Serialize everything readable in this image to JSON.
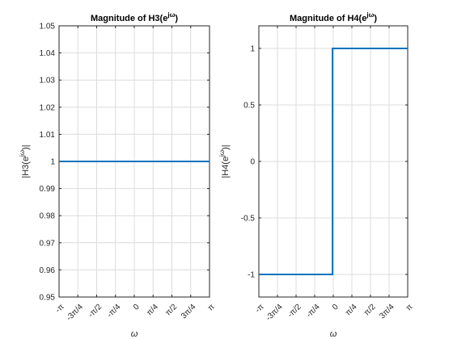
{
  "chart_data": [
    {
      "type": "line",
      "title": "Magnitude of H3(e^{jω})",
      "title_text": "Magnitude of H3(e",
      "title_sup": "jω",
      "title_close": ")",
      "xlabel": "ω",
      "ylabel": "|H3(e^{jω})|",
      "ylabel_text": "|H3(e",
      "ylabel_sup": "jω",
      "ylabel_close": ")|",
      "xlim": [
        -3.14159265,
        3.14159265
      ],
      "ylim": [
        0.95,
        1.05
      ],
      "x_ticks": [
        -3.14159265,
        -2.35619449,
        -1.57079633,
        -0.78539816,
        0,
        0.78539816,
        1.57079633,
        2.35619449,
        3.14159265
      ],
      "x_tick_labels": [
        "-π",
        "-3π/4",
        "-π/2",
        "-π/4",
        "0",
        "π/4",
        "π/2",
        "3π/4",
        "π"
      ],
      "y_ticks": [
        0.95,
        0.96,
        0.97,
        0.98,
        0.99,
        1,
        1.01,
        1.02,
        1.03,
        1.04,
        1.05
      ],
      "y_tick_labels": [
        "0.95",
        "0.96",
        "0.97",
        "0.98",
        "0.99",
        "1",
        "1.01",
        "1.02",
        "1.03",
        "1.04",
        "1.05"
      ],
      "grid": true,
      "color": "#0072BD",
      "series": [
        {
          "x": [
            -3.14159265,
            3.14159265
          ],
          "y": [
            1,
            1
          ]
        }
      ]
    },
    {
      "type": "line",
      "title": "Magnitude of H4(e^{jω})",
      "title_text": "Magnitude of H4(e",
      "title_sup": "jω",
      "title_close": ")",
      "xlabel": "ω",
      "ylabel": "|H4(e^{jω})|",
      "ylabel_text": "|H4(e",
      "ylabel_sup": "jω",
      "ylabel_close": ")|",
      "xlim": [
        -3.14159265,
        3.14159265
      ],
      "ylim": [
        -1.2,
        1.2
      ],
      "x_ticks": [
        -3.14159265,
        -2.35619449,
        -1.57079633,
        -0.78539816,
        0,
        0.78539816,
        1.57079633,
        2.35619449,
        3.14159265
      ],
      "x_tick_labels": [
        "-π",
        "-3π/4",
        "-π/2",
        "-π/4",
        "0",
        "π/4",
        "π/2",
        "3π/4",
        "π"
      ],
      "y_ticks": [
        -1,
        -0.5,
        0,
        0.5,
        1
      ],
      "y_tick_labels": [
        "-1",
        "-0.5",
        "0",
        "0.5",
        "1"
      ],
      "grid": true,
      "color": "#0072BD",
      "series": [
        {
          "x": [
            -3.14159265,
            -0.03,
            -0.03,
            3.14159265
          ],
          "y": [
            -1,
            -1,
            1,
            1
          ]
        }
      ]
    }
  ]
}
